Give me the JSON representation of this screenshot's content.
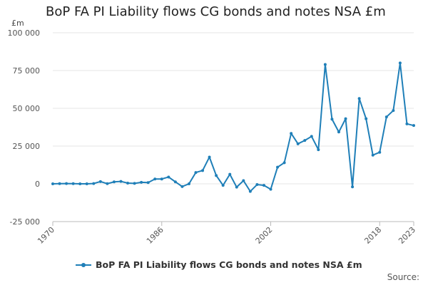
{
  "title": "BoP FA PI Liability flows CG bonds and notes NSA £m",
  "source_label": "Source:",
  "colors": {
    "series": "#1f7fb8",
    "grid": "#e6e6e6",
    "axis": "#bbbbbb"
  },
  "chart_data": {
    "type": "line",
    "title": "BoP FA PI Liability flows CG bonds and notes NSA £m",
    "ylabel": "£m",
    "xlabel": "",
    "ylim": [
      -25000,
      100000
    ],
    "xlim": [
      1970,
      2023
    ],
    "y_ticks": [
      -25000,
      0,
      25000,
      50000,
      75000,
      100000
    ],
    "y_tick_labels": [
      "-25 000",
      "0",
      "25 000",
      "50 000",
      "75 000",
      "100 000"
    ],
    "x_ticks": [
      1970,
      1986,
      2002,
      2018,
      2023
    ],
    "x_tick_labels": [
      "1970",
      "1986",
      "2002",
      "2018",
      "2023"
    ],
    "grid": true,
    "legend_position": "bottom",
    "x": [
      1970,
      1971,
      1972,
      1973,
      1974,
      1975,
      1976,
      1977,
      1978,
      1979,
      1980,
      1981,
      1982,
      1983,
      1984,
      1985,
      1986,
      1987,
      1988,
      1989,
      1990,
      1991,
      1992,
      1993,
      1994,
      1995,
      1996,
      1997,
      1998,
      1999,
      2000,
      2001,
      2002,
      2003,
      2004,
      2005,
      2006,
      2007,
      2008,
      2009,
      2010,
      2011,
      2012,
      2013,
      2014,
      2015,
      2016,
      2017,
      2018,
      2019,
      2020,
      2021,
      2022,
      2023
    ],
    "series": [
      {
        "name": "BoP FA PI Liability flows CG bonds and notes NSA £m",
        "values": [
          0,
          100,
          200,
          100,
          0,
          0,
          200,
          1500,
          100,
          1300,
          1600,
          500,
          300,
          1000,
          800,
          3200,
          3200,
          4500,
          1300,
          -1800,
          0,
          7500,
          8800,
          17700,
          5500,
          -1000,
          6300,
          -2200,
          2100,
          -5000,
          -500,
          -1000,
          -3600,
          11000,
          14000,
          33400,
          26500,
          28700,
          31400,
          22600,
          79000,
          42800,
          34300,
          43100,
          -2000,
          56500,
          43100,
          19000,
          20900,
          44300,
          48500,
          80000,
          39700,
          38600
        ]
      }
    ]
  }
}
